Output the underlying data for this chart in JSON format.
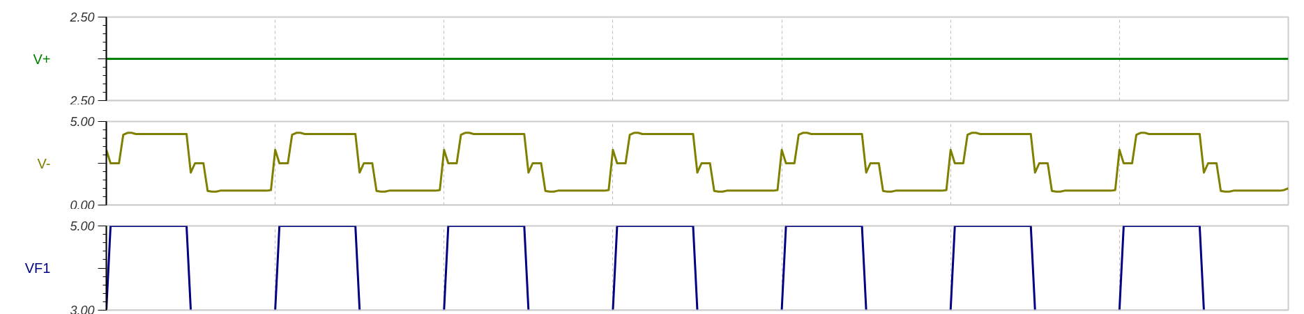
{
  "chart_data": [
    {
      "type": "line",
      "ylabel": "V+",
      "categories": [
        null,
        null,
        null,
        null,
        null,
        null,
        null,
        null,
        null,
        null,
        null,
        null,
        null,
        null,
        null,
        null,
        null,
        null,
        null,
        null,
        null,
        null,
        null,
        null,
        null,
        null,
        null,
        null,
        null,
        null,
        null,
        null,
        null,
        null,
        null,
        null,
        null,
        null,
        null,
        null,
        null,
        null,
        null,
        null,
        null,
        null,
        null,
        null,
        null,
        null,
        null,
        null,
        null,
        null,
        null,
        null,
        null,
        null,
        null,
        null,
        null,
        null,
        null,
        null,
        null,
        null,
        null,
        null,
        null,
        null,
        null,
        null,
        null,
        null,
        null,
        null,
        null,
        null,
        null,
        null,
        null,
        null,
        null,
        null,
        null,
        null,
        null,
        null,
        null,
        null,
        null,
        null,
        null,
        null,
        null,
        null,
        null,
        null,
        null,
        null,
        null,
        null,
        null,
        null,
        null,
        null,
        null,
        null,
        null,
        null,
        null,
        null,
        null,
        null,
        null,
        null,
        null,
        null,
        null,
        null,
        null,
        null,
        null,
        null,
        null,
        null,
        null,
        null,
        null,
        null,
        null,
        null,
        null,
        null,
        null,
        null,
        null,
        null,
        null,
        null,
        null,
        null,
        null,
        null,
        null,
        null,
        null,
        null,
        null,
        null,
        null,
        null,
        null,
        null,
        null,
        null,
        null,
        null,
        null,
        null,
        null,
        null,
        null,
        null,
        null,
        null,
        null,
        null,
        null,
        null,
        null,
        null,
        null,
        null,
        null,
        null,
        null,
        null,
        null,
        null,
        null,
        null,
        null,
        null,
        null,
        null,
        null,
        null,
        null,
        null,
        null,
        null,
        null,
        null,
        null,
        null,
        null,
        null,
        null,
        null,
        null,
        null,
        null,
        null,
        null,
        null,
        null,
        null,
        null,
        null,
        null,
        null,
        null,
        null,
        null,
        null,
        null,
        null,
        null,
        null,
        null,
        null,
        null,
        null,
        null,
        null,
        null,
        null,
        null,
        null,
        null,
        null,
        null,
        null,
        null,
        null,
        null,
        null,
        null,
        null,
        null,
        null,
        null,
        null,
        null,
        null,
        null,
        null,
        null,
        null,
        null,
        null,
        null,
        null,
        null,
        null,
        null,
        null,
        null,
        null,
        null,
        null,
        null,
        null,
        null,
        null,
        null,
        null,
        null,
        null,
        null,
        null,
        null,
        null,
        null,
        null,
        null,
        null,
        null,
        null,
        null
      ],
      "series": [
        {
          "color": "#008000",
          "values": [
            2.5,
            2.5,
            2.5,
            2.5,
            2.5,
            2.5,
            2.5,
            2.5,
            2.5,
            2.5,
            2.5,
            2.5,
            2.5,
            2.5,
            2.5,
            2.5,
            2.5,
            2.5,
            2.5,
            2.5,
            2.5,
            2.5,
            2.5,
            2.5,
            2.5,
            2.5,
            2.5,
            2.5,
            2.5,
            2.5,
            2.5,
            2.5,
            2.5,
            2.5,
            2.5,
            2.5,
            2.5,
            2.5,
            2.5,
            2.5,
            2.5,
            2.5,
            2.5,
            2.5,
            2.5,
            2.5,
            2.5,
            2.5,
            2.5,
            2.5,
            2.5,
            2.5,
            2.5,
            2.5,
            2.5,
            2.5,
            2.5,
            2.5,
            2.5,
            2.5,
            2.5,
            2.5,
            2.5,
            2.5,
            2.5,
            2.5,
            2.5,
            2.5,
            2.5,
            2.5,
            2.5,
            2.5,
            2.5,
            2.5,
            2.5,
            2.5,
            2.5,
            2.5,
            2.5,
            2.5,
            2.5,
            2.5,
            2.5,
            2.5,
            2.5,
            2.5,
            2.5,
            2.5,
            2.5,
            2.5,
            2.5,
            2.5,
            2.5,
            2.5,
            2.5,
            2.5,
            2.5,
            2.5,
            2.5,
            2.5,
            2.5,
            2.5,
            2.5,
            2.5,
            2.5,
            2.5,
            2.5,
            2.5,
            2.5,
            2.5,
            2.5,
            2.5,
            2.5,
            2.5,
            2.5,
            2.5,
            2.5,
            2.5,
            2.5,
            2.5,
            2.5,
            2.5,
            2.5,
            2.5,
            2.5,
            2.5,
            2.5,
            2.5,
            2.5,
            2.5,
            2.5,
            2.5,
            2.5,
            2.5,
            2.5,
            2.5,
            2.5,
            2.5,
            2.5,
            2.5,
            2.5,
            2.5,
            2.5,
            2.5,
            2.5,
            2.5,
            2.5,
            2.5,
            2.5,
            2.5,
            2.5,
            2.5,
            2.5,
            2.5,
            2.5,
            2.5,
            2.5,
            2.5,
            2.5,
            2.5,
            2.5,
            2.5,
            2.5,
            2.5,
            2.5,
            2.5,
            2.5,
            2.5,
            2.5,
            2.5,
            2.5,
            2.5,
            2.5,
            2.5,
            2.5,
            2.5,
            2.5,
            2.5,
            2.5,
            2.5,
            2.5,
            2.5,
            2.5,
            2.5,
            2.5,
            2.5,
            2.5,
            2.5,
            2.5,
            2.5,
            2.5,
            2.5,
            2.5,
            2.5,
            2.5,
            2.5,
            2.5,
            2.5,
            2.5,
            2.5,
            2.5,
            2.5,
            2.5,
            2.5,
            2.5,
            2.5,
            2.5,
            2.5,
            2.5,
            2.5,
            2.5,
            2.5,
            2.5,
            2.5,
            2.5,
            2.5,
            2.5,
            2.5,
            2.5,
            2.5,
            2.5,
            2.5,
            2.5,
            2.5,
            2.5,
            2.5,
            2.5,
            2.5,
            2.5,
            2.5,
            2.5,
            2.5,
            2.5,
            2.5,
            2.5,
            2.5,
            2.5,
            2.5,
            2.5,
            2.5,
            2.5,
            2.5,
            2.5,
            2.5,
            2.5,
            2.5,
            2.5,
            2.5,
            2.5,
            2.5,
            2.5,
            2.5,
            2.5,
            2.5,
            2.5,
            2.5,
            2.5,
            2.5,
            2.5,
            2.5,
            2.5,
            2.5,
            2.5,
            2.5,
            2.5,
            2.5,
            2.5,
            2.5,
            2.5,
            2.5,
            2.5,
            2.5,
            2.5,
            2.5,
            2.5,
            2.5,
            2.5,
            2.5,
            2.5,
            2.5,
            2.5
          ]
        }
      ],
      "ylim": [
        2.496,
        2.504
      ],
      "yticks": [
        {
          "value": 2.496,
          "label": "2.50"
        },
        {
          "value": 2.5,
          "label": null
        },
        {
          "value": 2.504,
          "label": "2.50"
        }
      ],
      "grid": "x",
      "tick_labels": "y"
    },
    {
      "type": "line",
      "ylabel": "V-",
      "categories": [
        null,
        null,
        null,
        null,
        null,
        null,
        null,
        null,
        null,
        null,
        null,
        null,
        null,
        null,
        null,
        null,
        null,
        null,
        null,
        null,
        null,
        null,
        null,
        null,
        null,
        null,
        null,
        null,
        null,
        null,
        null,
        null,
        null,
        null,
        null,
        null,
        null,
        null,
        null,
        null,
        null,
        null,
        null,
        null,
        null,
        null,
        null,
        null,
        null,
        null,
        null,
        null,
        null,
        null,
        null,
        null,
        null,
        null,
        null,
        null,
        null,
        null,
        null,
        null,
        null,
        null,
        null,
        null,
        null,
        null,
        null,
        null,
        null,
        null,
        null,
        null,
        null,
        null,
        null,
        null,
        null,
        null,
        null,
        null,
        null,
        null,
        null,
        null,
        null,
        null,
        null,
        null,
        null,
        null,
        null,
        null,
        null,
        null,
        null,
        null,
        null,
        null,
        null,
        null,
        null,
        null,
        null,
        null,
        null,
        null,
        null,
        null,
        null,
        null,
        null,
        null,
        null,
        null,
        null,
        null,
        null,
        null,
        null,
        null,
        null,
        null,
        null,
        null,
        null,
        null,
        null,
        null,
        null,
        null,
        null,
        null,
        null,
        null,
        null,
        null,
        null,
        null,
        null,
        null,
        null,
        null,
        null,
        null,
        null,
        null,
        null,
        null,
        null,
        null,
        null,
        null,
        null,
        null,
        null,
        null,
        null,
        null,
        null,
        null,
        null,
        null,
        null,
        null,
        null,
        null,
        null,
        null,
        null,
        null,
        null,
        null,
        null,
        null,
        null,
        null,
        null,
        null,
        null,
        null,
        null,
        null,
        null,
        null,
        null,
        null,
        null,
        null,
        null,
        null,
        null,
        null,
        null,
        null,
        null,
        null,
        null,
        null,
        null,
        null,
        null,
        null,
        null,
        null,
        null,
        null,
        null,
        null,
        null,
        null,
        null,
        null,
        null,
        null,
        null,
        null,
        null,
        null,
        null,
        null,
        null,
        null,
        null,
        null,
        null,
        null,
        null,
        null,
        null,
        null,
        null,
        null,
        null,
        null,
        null,
        null,
        null,
        null,
        null,
        null,
        null,
        null,
        null,
        null,
        null,
        null,
        null,
        null,
        null,
        null,
        null,
        null,
        null,
        null,
        null,
        null,
        null,
        null,
        null,
        null,
        null,
        null,
        null,
        null,
        null,
        null,
        null,
        null,
        null,
        null,
        null,
        null,
        null,
        null,
        null,
        null,
        null
      ],
      "series": [
        {
          "color": "#808000",
          "values": [
            3.3,
            2.5,
            2.5,
            2.5,
            4.2,
            4.32,
            4.32,
            4.25,
            4.25,
            4.25,
            4.25,
            4.25,
            4.25,
            4.25,
            4.25,
            4.25,
            4.25,
            4.25,
            4.25,
            4.25,
            1.94,
            2.5,
            2.5,
            2.5,
            0.84,
            0.8,
            0.8,
            0.86,
            0.86,
            0.86,
            0.86,
            0.86,
            0.86,
            0.86,
            0.86,
            0.86,
            0.86,
            0.86,
            0.86,
            0.9,
            3.3,
            2.5,
            2.5,
            2.5,
            4.2,
            4.32,
            4.32,
            4.25,
            4.25,
            4.25,
            4.25,
            4.25,
            4.25,
            4.25,
            4.25,
            4.25,
            4.25,
            4.25,
            4.25,
            4.25,
            1.94,
            2.5,
            2.5,
            2.5,
            0.84,
            0.8,
            0.8,
            0.86,
            0.86,
            0.86,
            0.86,
            0.86,
            0.86,
            0.86,
            0.86,
            0.86,
            0.86,
            0.86,
            0.86,
            0.9,
            3.3,
            2.5,
            2.5,
            2.5,
            4.2,
            4.32,
            4.32,
            4.25,
            4.25,
            4.25,
            4.25,
            4.25,
            4.25,
            4.25,
            4.25,
            4.25,
            4.25,
            4.25,
            4.25,
            4.25,
            1.94,
            2.5,
            2.5,
            2.5,
            0.84,
            0.8,
            0.8,
            0.86,
            0.86,
            0.86,
            0.86,
            0.86,
            0.86,
            0.86,
            0.86,
            0.86,
            0.86,
            0.86,
            0.86,
            0.9,
            3.3,
            2.5,
            2.5,
            2.5,
            4.2,
            4.32,
            4.32,
            4.25,
            4.25,
            4.25,
            4.25,
            4.25,
            4.25,
            4.25,
            4.25,
            4.25,
            4.25,
            4.25,
            4.25,
            4.25,
            1.94,
            2.5,
            2.5,
            2.5,
            0.84,
            0.8,
            0.8,
            0.86,
            0.86,
            0.86,
            0.86,
            0.86,
            0.86,
            0.86,
            0.86,
            0.86,
            0.86,
            0.86,
            0.86,
            0.9,
            3.3,
            2.5,
            2.5,
            2.5,
            4.2,
            4.32,
            4.32,
            4.25,
            4.25,
            4.25,
            4.25,
            4.25,
            4.25,
            4.25,
            4.25,
            4.25,
            4.25,
            4.25,
            4.25,
            4.25,
            1.94,
            2.5,
            2.5,
            2.5,
            0.84,
            0.8,
            0.8,
            0.86,
            0.86,
            0.86,
            0.86,
            0.86,
            0.86,
            0.86,
            0.86,
            0.86,
            0.86,
            0.86,
            0.86,
            0.9,
            3.3,
            2.5,
            2.5,
            2.5,
            4.2,
            4.32,
            4.32,
            4.25,
            4.25,
            4.25,
            4.25,
            4.25,
            4.25,
            4.25,
            4.25,
            4.25,
            4.25,
            4.25,
            4.25,
            4.25,
            1.94,
            2.5,
            2.5,
            2.5,
            0.84,
            0.8,
            0.8,
            0.86,
            0.86,
            0.86,
            0.86,
            0.86,
            0.86,
            0.86,
            0.86,
            0.86,
            0.86,
            0.86,
            0.86,
            0.9,
            3.3,
            2.5,
            2.5,
            2.5,
            4.2,
            4.32,
            4.32,
            4.25,
            4.25,
            4.25,
            4.25,
            4.25,
            4.25,
            4.25,
            4.25,
            4.25,
            4.25,
            4.25,
            4.25,
            4.25,
            1.94,
            2.5,
            2.5,
            2.5,
            0.84,
            0.8,
            0.8,
            0.86,
            0.86,
            0.86,
            0.86,
            0.86,
            0.86,
            0.86,
            0.86,
            0.86,
            0.86,
            0.86,
            0.86,
            0.9,
            1.0
          ]
        }
      ],
      "ylim": [
        0,
        5
      ],
      "yticks": [
        {
          "value": 0,
          "label": "0.00"
        },
        {
          "value": 2.5,
          "label": null
        },
        {
          "value": 5,
          "label": "5.00"
        }
      ],
      "grid": "x",
      "tick_labels": "y"
    },
    {
      "type": "line",
      "ylabel": "VF1",
      "categories": [
        null,
        null,
        null,
        null,
        null,
        null,
        null,
        null,
        null,
        null,
        null,
        null,
        null,
        null,
        null,
        null,
        null,
        null,
        null,
        null,
        null,
        null,
        null,
        null,
        null,
        null,
        null,
        null,
        null,
        null,
        null,
        null,
        null,
        null,
        null,
        null,
        null,
        null,
        null,
        null,
        null,
        null,
        null,
        null,
        null,
        null,
        null,
        null,
        null,
        null,
        null,
        null,
        null,
        null,
        null,
        null,
        null,
        null,
        null,
        null,
        null,
        null,
        null,
        null,
        null,
        null,
        null,
        null,
        null,
        null,
        null,
        null,
        null,
        null,
        null,
        null,
        null,
        null,
        null,
        null,
        null,
        null,
        null,
        null,
        null,
        null,
        null,
        null,
        null,
        null,
        null,
        null,
        null,
        null,
        null,
        null,
        null,
        null,
        null,
        null,
        null,
        null,
        null,
        null,
        null,
        null,
        null,
        null,
        null,
        null,
        null,
        null,
        null,
        null,
        null,
        null,
        null,
        null,
        null,
        null,
        null,
        null,
        null,
        null,
        null,
        null,
        null,
        null,
        null,
        null,
        null,
        null,
        null,
        null,
        null,
        null,
        null,
        null,
        null,
        null,
        null,
        null,
        null,
        null,
        null,
        null,
        null,
        null,
        null,
        null,
        null,
        null,
        null,
        null,
        null,
        null,
        null,
        null,
        null,
        null,
        null,
        null,
        null,
        null,
        null,
        null,
        null,
        null,
        null,
        null,
        null,
        null,
        null,
        null,
        null,
        null,
        null,
        null,
        null,
        null,
        null,
        null,
        null,
        null,
        null,
        null,
        null,
        null,
        null,
        null,
        null,
        null,
        null,
        null,
        null,
        null,
        null,
        null,
        null,
        null,
        null,
        null,
        null,
        null,
        null,
        null,
        null,
        null,
        null,
        null,
        null,
        null,
        null,
        null,
        null,
        null,
        null,
        null,
        null,
        null,
        null,
        null,
        null,
        null,
        null,
        null,
        null,
        null,
        null,
        null,
        null,
        null,
        null,
        null,
        null,
        null,
        null,
        null,
        null,
        null,
        null,
        null,
        null,
        null,
        null,
        null,
        null,
        null,
        null,
        null,
        null,
        null,
        null,
        null,
        null,
        null,
        null,
        null,
        null,
        null,
        null,
        null,
        null,
        null,
        null,
        null,
        null,
        null,
        null,
        null,
        null,
        null,
        null,
        null,
        null,
        null,
        null,
        null,
        null,
        null,
        null
      ],
      "series": [
        {
          "color": "#000080",
          "values": [
            3.0,
            5,
            5,
            5,
            5,
            5,
            5,
            5,
            5,
            5,
            5,
            5,
            5,
            5,
            5,
            5,
            5,
            5,
            5,
            5,
            3.0,
            null,
            null,
            null,
            null,
            null,
            null,
            null,
            null,
            null,
            null,
            null,
            null,
            null,
            null,
            null,
            null,
            null,
            null,
            null,
            3.0,
            5,
            5,
            5,
            5,
            5,
            5,
            5,
            5,
            5,
            5,
            5,
            5,
            5,
            5,
            5,
            5,
            5,
            5,
            5,
            3.0,
            null,
            null,
            null,
            null,
            null,
            null,
            null,
            null,
            null,
            null,
            null,
            null,
            null,
            null,
            null,
            null,
            null,
            null,
            null,
            3.0,
            5,
            5,
            5,
            5,
            5,
            5,
            5,
            5,
            5,
            5,
            5,
            5,
            5,
            5,
            5,
            5,
            5,
            5,
            5,
            3.0,
            null,
            null,
            null,
            null,
            null,
            null,
            null,
            null,
            null,
            null,
            null,
            null,
            null,
            null,
            null,
            null,
            null,
            null,
            null,
            3.0,
            5,
            5,
            5,
            5,
            5,
            5,
            5,
            5,
            5,
            5,
            5,
            5,
            5,
            5,
            5,
            5,
            5,
            5,
            5,
            3.0,
            null,
            null,
            null,
            null,
            null,
            null,
            null,
            null,
            null,
            null,
            null,
            null,
            null,
            null,
            null,
            null,
            null,
            null,
            null,
            3.0,
            5,
            5,
            5,
            5,
            5,
            5,
            5,
            5,
            5,
            5,
            5,
            5,
            5,
            5,
            5,
            5,
            5,
            5,
            5,
            3.0,
            null,
            null,
            null,
            null,
            null,
            null,
            null,
            null,
            null,
            null,
            null,
            null,
            null,
            null,
            null,
            null,
            null,
            null,
            null,
            3.0,
            5,
            5,
            5,
            5,
            5,
            5,
            5,
            5,
            5,
            5,
            5,
            5,
            5,
            5,
            5,
            5,
            5,
            5,
            5,
            3.0,
            null,
            null,
            null,
            null,
            null,
            null,
            null,
            null,
            null,
            null,
            null,
            null,
            null,
            null,
            null,
            null,
            null,
            null,
            null,
            3.0,
            5,
            5,
            5,
            5,
            5,
            5,
            5,
            5,
            5,
            5,
            5,
            5,
            5,
            5,
            5,
            5,
            5,
            5,
            5,
            3.0,
            null,
            null,
            null,
            null,
            null,
            null,
            null,
            null,
            null,
            null,
            null,
            null,
            null,
            null,
            null,
            null,
            null,
            null,
            null,
            null
          ]
        }
      ],
      "ylim": [
        3,
        5
      ],
      "yticks": [
        {
          "value": 3,
          "label": "3.00"
        },
        {
          "value": 4,
          "label": null
        },
        {
          "value": 5,
          "label": "5.00"
        }
      ],
      "grid": "x",
      "tick_labels": "y"
    }
  ]
}
